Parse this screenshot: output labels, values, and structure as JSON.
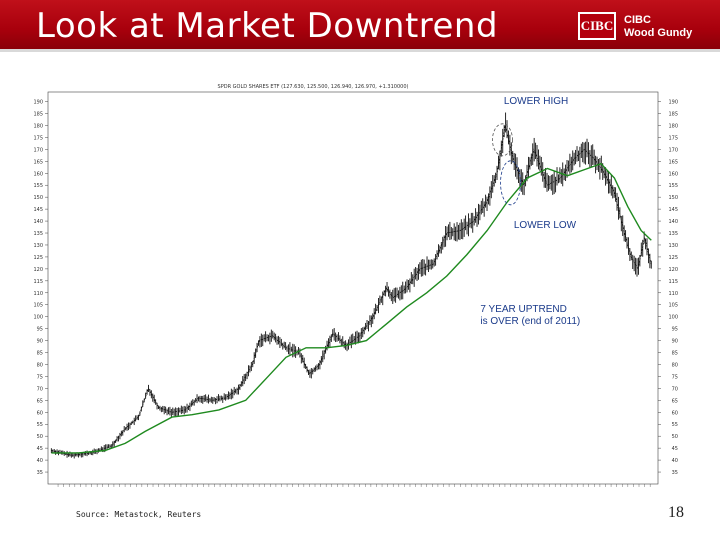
{
  "slide": {
    "title": "Look at Market Downtrend",
    "logo": {
      "mark": "CIBC",
      "line1": "CIBC",
      "line2": "Wood Gundy"
    },
    "source": "Source: Metastock, Reuters",
    "page_number": "18"
  },
  "chart_data": {
    "type": "line",
    "title": "SPDR GOLD SHARES ETF (127.630, 125.500, 126.940, 126.970, +1.310000)",
    "ylim": [
      30,
      194
    ],
    "y_ticks": [
      35,
      40,
      45,
      50,
      55,
      60,
      65,
      70,
      75,
      80,
      85,
      90,
      95,
      100,
      105,
      110,
      115,
      120,
      125,
      130,
      135,
      140,
      145,
      150,
      155,
      160,
      165,
      170,
      175,
      180,
      185,
      190
    ],
    "annotations": [
      {
        "text": "LOWER HIGH"
      },
      {
        "text": "LOWER LOW"
      },
      {
        "text": "7 YEAR UPTREND"
      },
      {
        "text": "is OVER (end of 2011)"
      }
    ],
    "series": [
      {
        "style": "price",
        "x": [
          2004.9,
          2005.2,
          2005.5,
          2005.8,
          2006.0,
          2006.2,
          2006.35,
          2006.5,
          2006.7,
          2006.9,
          2007.1,
          2007.3,
          2007.5,
          2007.7,
          2007.9,
          2008.0,
          2008.2,
          2008.4,
          2008.6,
          2008.75,
          2008.9,
          2009.1,
          2009.3,
          2009.5,
          2009.7,
          2009.9,
          2010.0,
          2010.2,
          2010.4,
          2010.6,
          2010.8,
          2011.0,
          2011.2,
          2011.4,
          2011.55,
          2011.67,
          2011.8,
          2011.95,
          2012.1,
          2012.3,
          2012.5,
          2012.7,
          2012.85,
          2013.0,
          2013.15,
          2013.3,
          2013.45,
          2013.55,
          2013.65,
          2013.75,
          2013.85
        ],
        "values": [
          44,
          42,
          43,
          46,
          53,
          58,
          70,
          62,
          60,
          61,
          66,
          65,
          66,
          70,
          80,
          90,
          92,
          87,
          85,
          76,
          80,
          93,
          88,
          92,
          100,
          112,
          108,
          112,
          120,
          122,
          135,
          136,
          140,
          148,
          160,
          180,
          165,
          155,
          170,
          155,
          158,
          166,
          170,
          166,
          160,
          152,
          135,
          125,
          120,
          133,
          122
        ]
      },
      {
        "style": "moving-average",
        "x": [
          2004.9,
          2005.3,
          2005.7,
          2006.0,
          2006.3,
          2006.7,
          2007.0,
          2007.4,
          2007.8,
          2008.1,
          2008.4,
          2008.7,
          2009.0,
          2009.3,
          2009.6,
          2009.9,
          2010.2,
          2010.5,
          2010.8,
          2011.1,
          2011.4,
          2011.7,
          2012.0,
          2012.3,
          2012.6,
          2012.9,
          2013.1,
          2013.3,
          2013.5,
          2013.7,
          2013.85
        ],
        "values": [
          43,
          43,
          44,
          47,
          52,
          58,
          59,
          61,
          65,
          74,
          83,
          87,
          87,
          88,
          90,
          97,
          104,
          110,
          117,
          126,
          136,
          148,
          158,
          162,
          159,
          162,
          164,
          158,
          146,
          136,
          132
        ]
      }
    ]
  }
}
